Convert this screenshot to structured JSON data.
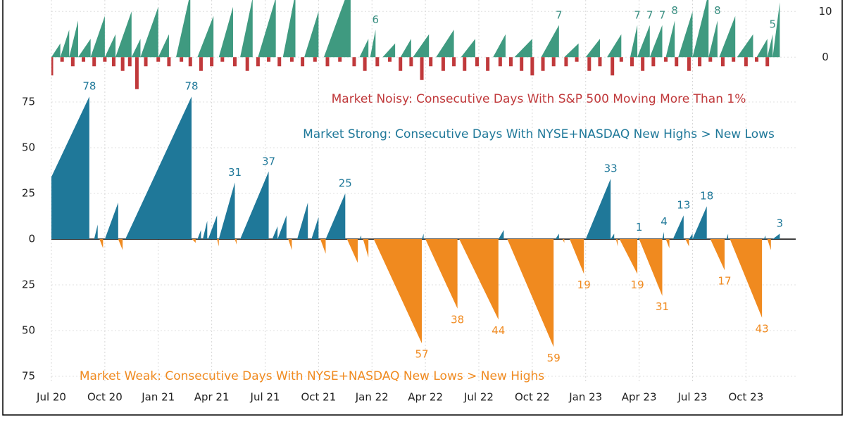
{
  "chart_data": [
    {
      "type": "sawtooth",
      "color": "#3f9a80",
      "label_color": "#3a8f82",
      "xlim": [
        0,
        41.2
      ],
      "ylim": [
        -7,
        12.5
      ],
      "yticks": [
        0,
        10
      ],
      "x_start": [
        0,
        0.5,
        1,
        1.5,
        2.2,
        3,
        3.6,
        4.5,
        5,
        6,
        7,
        8.2,
        9.4,
        10.6,
        11.6,
        13,
        14.2,
        15.3,
        17.3,
        17.9,
        18.6,
        19.6,
        20.3,
        21.6,
        23,
        24.8,
        26,
        27.5,
        28.8,
        30,
        31.2,
        32.5,
        32.9,
        33.6,
        34.5,
        35.2,
        36,
        36.9,
        37.5,
        38.5,
        39.6,
        40.2,
        40.5
      ],
      "x_end": [
        0.5,
        1,
        1.5,
        2.2,
        3,
        3.6,
        4.5,
        5,
        6,
        6.6,
        7.8,
        9.1,
        10.2,
        11.3,
        12.6,
        13.7,
        15,
        16.8,
        17.8,
        18.2,
        19.3,
        20.2,
        21.2,
        22.6,
        23.8,
        25.5,
        27,
        28.5,
        29.6,
        30.8,
        32,
        32.9,
        33.6,
        34.3,
        35,
        36,
        36.9,
        37.4,
        38.4,
        39.4,
        40.2,
        40.5,
        40.9
      ],
      "values": [
        3,
        6,
        8,
        4,
        9,
        5,
        10,
        4,
        11,
        5,
        14,
        9,
        11,
        13,
        13,
        14,
        10,
        16,
        4,
        6,
        3,
        4,
        5,
        6,
        4,
        5,
        4,
        7,
        3,
        4,
        5,
        7,
        7,
        7,
        8,
        10,
        14,
        8,
        9,
        5,
        4,
        5,
        12
      ],
      "value_labels": [
        null,
        null,
        null,
        null,
        null,
        null,
        null,
        null,
        null,
        null,
        null,
        null,
        null,
        null,
        null,
        null,
        null,
        null,
        null,
        "6",
        null,
        null,
        null,
        null,
        null,
        null,
        null,
        "7",
        null,
        null,
        null,
        "7",
        "7",
        "7",
        "8",
        null,
        null,
        "8",
        null,
        null,
        null,
        "5",
        null
      ]
    },
    {
      "type": "spike",
      "title": "Market Noisy: Consecutive Days With S&P 500 Moving More Than 1%",
      "color": "#c0393b",
      "xlim": [
        0,
        41.2
      ],
      "ylim": [
        -7,
        12.5
      ],
      "x": [
        0,
        0.6,
        1.2,
        1.8,
        2.4,
        3.0,
        3.5,
        4.0,
        4.4,
        4.8,
        5.3,
        6,
        6.6,
        7.3,
        7.8,
        8.4,
        9,
        9.6,
        10.3,
        11,
        11.6,
        12.2,
        12.8,
        13.5,
        14.1,
        14.8,
        15.5,
        16.2,
        17,
        17.6,
        18.3,
        19,
        19.6,
        20.2,
        20.8,
        21.3,
        22,
        22.6,
        23.2,
        23.9,
        24.5,
        25.2,
        25.8,
        26.4,
        27,
        27.6,
        28.2,
        28.9,
        29.5,
        30.2,
        30.8,
        31.5,
        32,
        32.6,
        33.2,
        33.8,
        34.5,
        35.1,
        35.8,
        36.4,
        37,
        37.7,
        38.3,
        39,
        39.6,
        40.2
      ],
      "values": [
        -4,
        -1,
        -2,
        -1,
        -2,
        -1,
        -2,
        -3,
        -2,
        -7,
        -2,
        -1,
        -2,
        -1,
        -2,
        -3,
        -2,
        -1,
        -2,
        -3,
        -2,
        -1,
        -2,
        -1,
        -2,
        -1,
        -2,
        -1,
        -2,
        -3,
        -2,
        -1,
        -3,
        -2,
        -5,
        -2,
        -3,
        -2,
        -3,
        -2,
        -3,
        -2,
        -2,
        -3,
        -4,
        -3,
        -2,
        -2,
        -1,
        -3,
        -2,
        -4,
        -1,
        -2,
        -3,
        -2,
        -1,
        -2,
        -3,
        -2,
        -1,
        -2,
        -1,
        -2,
        -1,
        -2
      ]
    },
    {
      "type": "sawtooth",
      "annotations": [
        "Market Strong: Consecutive Days With NYSE+NASDAQ New Highs > New Lows",
        "Market Weak: Consecutive Days With NYSE+NASDAQ New Lows > New Highs"
      ],
      "colors": {
        "positive": "#1f7899",
        "negative": "#f08a1f"
      },
      "xlim": [
        0,
        41.2
      ],
      "ylim": [
        -75,
        75
      ],
      "yticks": [
        75,
        50,
        25,
        0,
        {
          "value": -25,
          "label": "25"
        },
        {
          "value": -50,
          "label": "50"
        },
        {
          "value": -75,
          "label": "75"
        }
      ],
      "xticks": [
        {
          "value": 0,
          "label": "Jul 20"
        },
        {
          "value": 3,
          "label": "Oct 20"
        },
        {
          "value": 6,
          "label": "Jan 21"
        },
        {
          "value": 9,
          "label": "Apr 21"
        },
        {
          "value": 12,
          "label": "Jul 21"
        },
        {
          "value": 15,
          "label": "Oct 21"
        },
        {
          "value": 18,
          "label": "Jan 22"
        },
        {
          "value": 21,
          "label": "Apr 22"
        },
        {
          "value": 24,
          "label": "Jul 22"
        },
        {
          "value": 27,
          "label": "Oct 22"
        },
        {
          "value": 30,
          "label": "Jan 23"
        },
        {
          "value": 33,
          "label": "Apr 23"
        },
        {
          "value": 36,
          "label": "Jul 23"
        },
        {
          "value": 39,
          "label": "Oct 23"
        }
      ],
      "x_start": [
        -1.65,
        2.4,
        2.7,
        3.0,
        3.75,
        4.15,
        7.9,
        8.2,
        8.5,
        8.8,
        9.3,
        9.4,
        10.3,
        10.6,
        12.4,
        12.7,
        13.3,
        13.8,
        14.6,
        15.1,
        15.4,
        16.6,
        17.3,
        17.5,
        18.1,
        20.8,
        21,
        22.9,
        25.1,
        25.6,
        28.3,
        28.7,
        29.1,
        30.0,
        31.4,
        31.7,
        31.9,
        32.9,
        33.0,
        34.3,
        34.5,
        34.9,
        35.6,
        35.8,
        36,
        37,
        37.9,
        38.1,
        40,
        40.2,
        40.5
      ],
      "x_end": [
        2.13,
        2.6,
        2.9,
        3.75,
        4.0,
        7.87,
        8.1,
        8.4,
        8.75,
        9.3,
        9.4,
        10.3,
        10.4,
        12.2,
        12.7,
        13.2,
        13.5,
        14.4,
        15,
        15.4,
        16.5,
        17.2,
        17.4,
        17.8,
        20.8,
        20.9,
        22.8,
        25.1,
        25.4,
        28.2,
        28.5,
        28.8,
        29.9,
        31.4,
        31.6,
        31.8,
        32.9,
        33.0,
        34.3,
        34.4,
        34.7,
        35.5,
        35.8,
        36,
        36.8,
        37.8,
        38,
        39.9,
        40.1,
        40.4,
        40.9
      ],
      "values": [
        78,
        8,
        -5,
        20,
        -6,
        78,
        -2,
        5,
        10,
        13,
        -4,
        31,
        -3,
        37,
        7,
        13,
        -6,
        20,
        12,
        -8,
        25,
        -13,
        2,
        -10,
        -57,
        3,
        -38,
        -44,
        5,
        -59,
        3,
        -2,
        -19,
        33,
        3,
        -4,
        -19,
        1,
        -31,
        4,
        -5,
        13,
        -4,
        3,
        18,
        -17,
        3,
        -43,
        2,
        -6,
        3
      ],
      "value_labels": [
        "78",
        null,
        null,
        null,
        null,
        "78",
        null,
        null,
        null,
        null,
        null,
        "31",
        null,
        "37",
        null,
        null,
        null,
        null,
        null,
        null,
        "25",
        null,
        null,
        null,
        "57",
        null,
        "38",
        "44",
        null,
        "59",
        null,
        null,
        "19",
        "33",
        null,
        null,
        "19",
        "1",
        "31",
        "4",
        null,
        "13",
        null,
        null,
        "18",
        "17",
        null,
        "43",
        null,
        null,
        "3"
      ]
    }
  ]
}
